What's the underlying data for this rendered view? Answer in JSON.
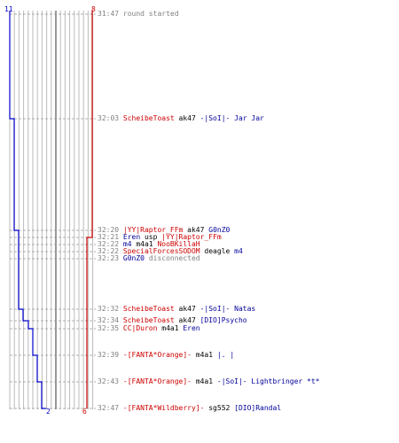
{
  "colors": {
    "team_blue": "#0000cc",
    "team_red": "#cc0000",
    "timestamp": "#808080",
    "event_text": "#000000",
    "grid": "#bbbbbb",
    "grid_center": "#777777"
  },
  "scores": {
    "blue_start": "11",
    "blue_end": "2",
    "red_start": "8",
    "red_end": "6"
  },
  "log": [
    {
      "time": "31:47",
      "parts": [
        {
          "t": "round started",
          "c": "t"
        }
      ]
    },
    {
      "time": "32:03",
      "parts": [
        {
          "t": "ScheibeToast",
          "c": "r"
        },
        {
          "t": " ak47 ",
          "c": "w"
        },
        {
          "t": "-|SoI|- Jar Jar",
          "c": "b"
        }
      ]
    },
    {
      "time": "32:20",
      "parts": [
        {
          "t": "|YY|Raptor_FFm",
          "c": "r"
        },
        {
          "t": " ak47 ",
          "c": "w"
        },
        {
          "t": "G0nZ0",
          "c": "b"
        }
      ]
    },
    {
      "time": "32:21",
      "parts": [
        {
          "t": "Eren",
          "c": "b"
        },
        {
          "t": " usp ",
          "c": "w"
        },
        {
          "t": "|YY|Raptor_FFm",
          "c": "r"
        }
      ]
    },
    {
      "time": "32:22",
      "parts": [
        {
          "t": "m4",
          "c": "b"
        },
        {
          "t": " m4a1 ",
          "c": "w"
        },
        {
          "t": "NooBKillaH",
          "c": "r"
        }
      ]
    },
    {
      "time": "32:22",
      "parts": [
        {
          "t": "SpecialForcesSODOM",
          "c": "r"
        },
        {
          "t": " deagle ",
          "c": "w"
        },
        {
          "t": "m4",
          "c": "b"
        }
      ]
    },
    {
      "time": "32:23",
      "parts": [
        {
          "t": "G0nZ0",
          "c": "b"
        },
        {
          "t": " disconnected",
          "c": "t"
        }
      ]
    },
    {
      "time": "32:32",
      "parts": [
        {
          "t": "ScheibeToast",
          "c": "r"
        },
        {
          "t": " ak47 ",
          "c": "w"
        },
        {
          "t": "-|SoI|- Natas",
          "c": "b"
        }
      ]
    },
    {
      "time": "32:34",
      "parts": [
        {
          "t": "ScheibeToast",
          "c": "r"
        },
        {
          "t": " ak47 ",
          "c": "w"
        },
        {
          "t": "[DIO]Psycho",
          "c": "b"
        }
      ]
    },
    {
      "time": "32:35",
      "parts": [
        {
          "t": "CC|Duron",
          "c": "r"
        },
        {
          "t": " m4a1 ",
          "c": "w"
        },
        {
          "t": "Eren",
          "c": "b"
        }
      ]
    },
    {
      "time": "32:39",
      "parts": [
        {
          "t": "-[FANTA*Orange]-",
          "c": "r"
        },
        {
          "t": " m4a1 ",
          "c": "w"
        },
        {
          "t": "|. |",
          "c": "b"
        }
      ]
    },
    {
      "time": "32:43",
      "parts": [
        {
          "t": "-[FANTA*Orange]-",
          "c": "r"
        },
        {
          "t": " m4a1 ",
          "c": "w"
        },
        {
          "t": "-|SoI|- Lightbringer *t*",
          "c": "b"
        }
      ]
    },
    {
      "time": "32:47",
      "parts": [
        {
          "t": "-[FANTA*Wildberry]-",
          "c": "r"
        },
        {
          "t": " sg552 ",
          "c": "w"
        },
        {
          "t": "[DIO]Randal",
          "c": "b"
        }
      ]
    }
  ]
}
